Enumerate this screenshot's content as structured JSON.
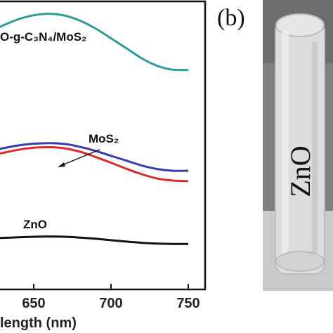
{
  "chart_data": {
    "type": "line",
    "xlabel": "length (nm)",
    "ylabel": "",
    "xlim": [
      610,
      750
    ],
    "xticks": [
      {
        "value": 650,
        "label": "650"
      },
      {
        "value": 700,
        "label": "700"
      },
      {
        "value": 750,
        "label": "750"
      }
    ],
    "ylim": [
      0,
      1
    ],
    "grid": false,
    "series": [
      {
        "name": "O-g-C3N4/MoS2",
        "color": "#2e9c9a",
        "x": [
          610,
          620,
          630,
          640,
          650,
          660,
          670,
          680,
          690,
          700,
          710,
          720,
          730,
          740,
          750
        ],
        "y": [
          0.86,
          0.889,
          0.916,
          0.938,
          0.952,
          0.957,
          0.951,
          0.933,
          0.906,
          0.872,
          0.837,
          0.802,
          0.776,
          0.763,
          0.762
        ]
      },
      {
        "name": "MoS2",
        "color": "#3a3ab4",
        "x": [
          610,
          620,
          630,
          640,
          650,
          660,
          670,
          680,
          690,
          700,
          710,
          720,
          730,
          740,
          750
        ],
        "y": [
          0.469,
          0.478,
          0.49,
          0.5,
          0.506,
          0.508,
          0.505,
          0.495,
          0.481,
          0.464,
          0.447,
          0.43,
          0.418,
          0.412,
          0.412
        ]
      },
      {
        "name": "",
        "color": "#e0292a",
        "x": [
          610,
          620,
          630,
          640,
          650,
          660,
          670,
          680,
          690,
          700,
          710,
          720,
          730,
          740,
          750
        ],
        "y": [
          0.454,
          0.462,
          0.474,
          0.485,
          0.492,
          0.494,
          0.49,
          0.478,
          0.46,
          0.44,
          0.419,
          0.4,
          0.385,
          0.378,
          0.376
        ]
      },
      {
        "name": "ZnO",
        "color": "#111111",
        "x": [
          610,
          620,
          630,
          640,
          650,
          660,
          670,
          680,
          690,
          700,
          710,
          720,
          730,
          740,
          750
        ],
        "y": [
          0.175,
          0.177,
          0.179,
          0.181,
          0.183,
          0.184,
          0.183,
          0.18,
          0.176,
          0.171,
          0.166,
          0.162,
          0.159,
          0.158,
          0.158
        ]
      }
    ],
    "labels": {
      "top_series": "O-g-C₃N₄/MoS₂",
      "mos2": "MoS₂",
      "zno": "ZnO"
    }
  },
  "panel_b": {
    "letter": "(b)",
    "vial_label": "ZnO"
  }
}
